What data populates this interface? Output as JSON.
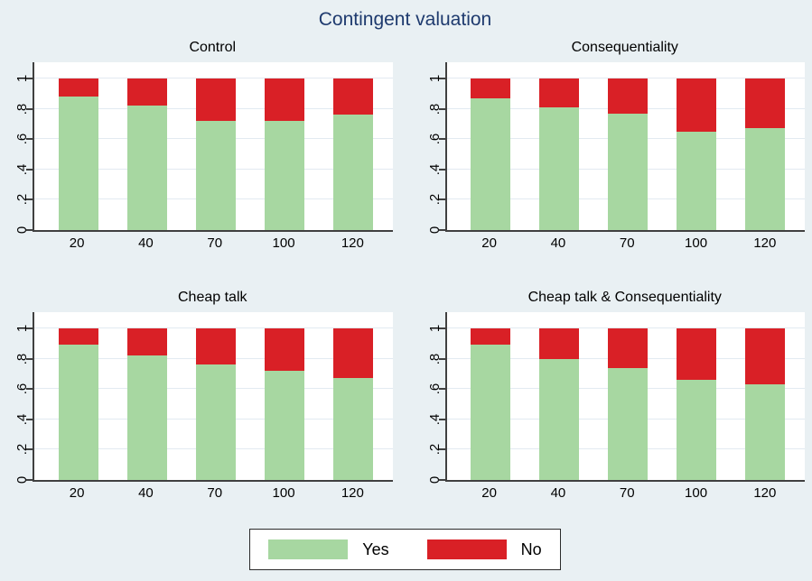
{
  "title": "Contingent valuation",
  "colors": {
    "yes": "#a7d7a1",
    "no": "#d92026",
    "background": "#e9f0f3",
    "title_text": "#1e3a6e",
    "axis": "#404040",
    "gridline": "#e2eaf1",
    "legend_border": "#2b2b2b"
  },
  "y_axis": {
    "tick_labels": [
      "0",
      ".2",
      ".4",
      ".6",
      ".8",
      "1"
    ],
    "tick_values": [
      0,
      0.2,
      0.4,
      0.6,
      0.8,
      1
    ]
  },
  "x_categories": [
    "20",
    "40",
    "70",
    "100",
    "120"
  ],
  "legend": {
    "position": "bottom-center",
    "items": [
      {
        "label": "Yes",
        "color_key": "yes"
      },
      {
        "label": "No",
        "color_key": "no"
      }
    ]
  },
  "chart_data": [
    {
      "type": "bar",
      "stacked": true,
      "title": "Control",
      "categories": [
        "20",
        "40",
        "70",
        "100",
        "120"
      ],
      "series": [
        {
          "name": "Yes",
          "values": [
            0.88,
            0.82,
            0.72,
            0.72,
            0.76
          ]
        },
        {
          "name": "No",
          "values": [
            0.12,
            0.18,
            0.28,
            0.28,
            0.24
          ]
        }
      ],
      "ylim": [
        0,
        1
      ],
      "grid": true,
      "xlabel": "",
      "ylabel": ""
    },
    {
      "type": "bar",
      "stacked": true,
      "title": "Consequentiality",
      "categories": [
        "20",
        "40",
        "70",
        "100",
        "120"
      ],
      "series": [
        {
          "name": "Yes",
          "values": [
            0.87,
            0.81,
            0.77,
            0.65,
            0.67
          ]
        },
        {
          "name": "No",
          "values": [
            0.13,
            0.19,
            0.23,
            0.35,
            0.33
          ]
        }
      ],
      "ylim": [
        0,
        1
      ],
      "grid": true,
      "xlabel": "",
      "ylabel": ""
    },
    {
      "type": "bar",
      "stacked": true,
      "title": "Cheap talk",
      "categories": [
        "20",
        "40",
        "70",
        "100",
        "120"
      ],
      "series": [
        {
          "name": "Yes",
          "values": [
            0.89,
            0.82,
            0.76,
            0.72,
            0.67
          ]
        },
        {
          "name": "No",
          "values": [
            0.11,
            0.18,
            0.24,
            0.28,
            0.33
          ]
        }
      ],
      "ylim": [
        0,
        1
      ],
      "grid": true,
      "xlabel": "",
      "ylabel": ""
    },
    {
      "type": "bar",
      "stacked": true,
      "title": "Cheap talk & Consequentiality",
      "categories": [
        "20",
        "40",
        "70",
        "100",
        "120"
      ],
      "series": [
        {
          "name": "Yes",
          "values": [
            0.89,
            0.8,
            0.74,
            0.66,
            0.63
          ]
        },
        {
          "name": "No",
          "values": [
            0.11,
            0.2,
            0.26,
            0.34,
            0.37
          ]
        }
      ],
      "ylim": [
        0,
        1
      ],
      "grid": true,
      "xlabel": "",
      "ylabel": ""
    }
  ]
}
